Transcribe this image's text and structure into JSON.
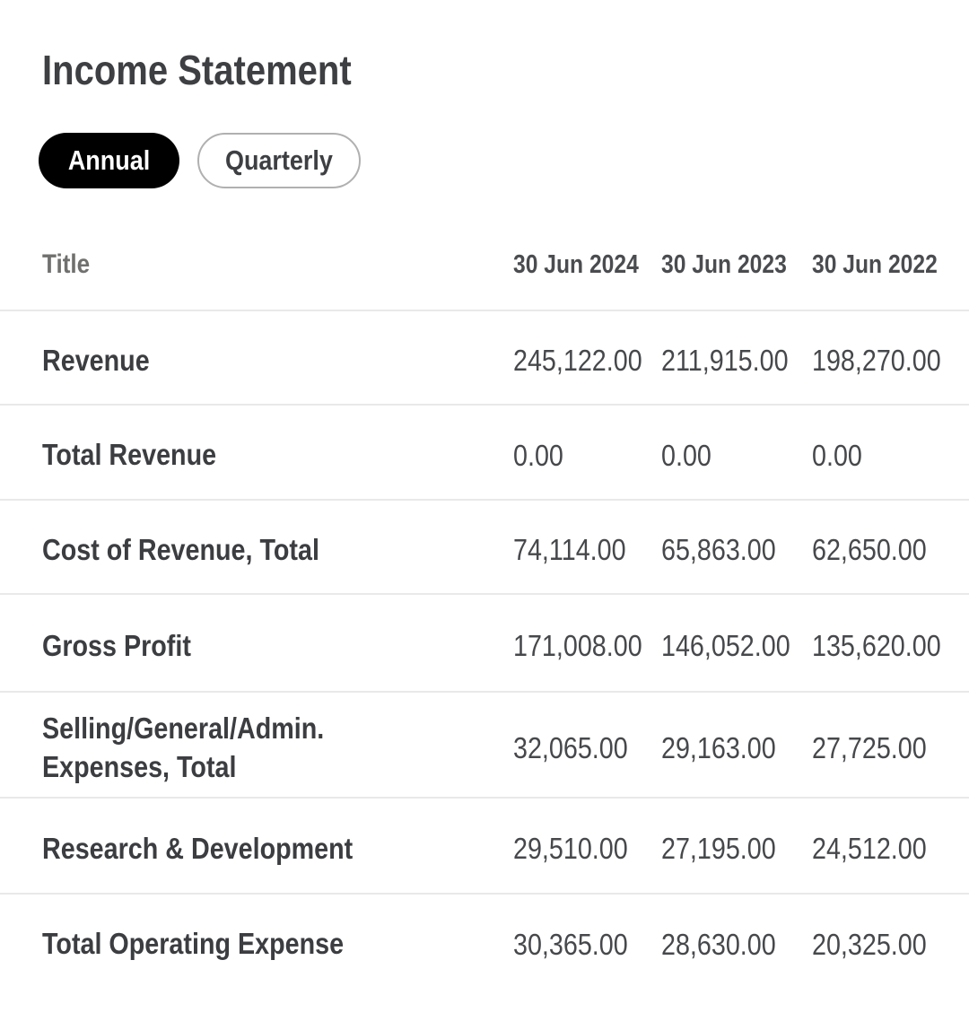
{
  "page": {
    "title": "Income Statement"
  },
  "toggle": {
    "annual_label": "Annual",
    "quarterly_label": "Quarterly",
    "selected": "Annual"
  },
  "table": {
    "header": {
      "title": "Title",
      "columns": [
        "30 Jun 2024",
        "30 Jun 2023",
        "30 Jun 2022"
      ]
    },
    "rows": [
      {
        "label": "Revenue",
        "values": [
          "245,122.00",
          "211,915.00",
          "198,270.00"
        ]
      },
      {
        "label": "Total Revenue",
        "values": [
          "0.00",
          "0.00",
          "0.00"
        ]
      },
      {
        "label": "Cost of Revenue, Total",
        "values": [
          "74,114.00",
          "65,863.00",
          "62,650.00"
        ]
      },
      {
        "label": "Gross Profit",
        "values": [
          "171,008.00",
          "146,052.00",
          "135,620.00"
        ]
      },
      {
        "label": "Selling/General/Admin. Expenses, Total",
        "values": [
          "32,065.00",
          "29,163.00",
          "27,725.00"
        ]
      },
      {
        "label": "Research & Development",
        "values": [
          "29,510.00",
          "27,195.00",
          "24,512.00"
        ]
      },
      {
        "label": "Total Operating Expense",
        "values": [
          "30,365.00",
          "28,630.00",
          "20,325.00"
        ]
      }
    ]
  },
  "colors": {
    "text": "#404245",
    "muted": "#70706e",
    "divider": "#e9e9e9",
    "pill_active_bg": "#000000",
    "pill_active_text": "#ffffff",
    "pill_border": "#b0b0b0"
  }
}
